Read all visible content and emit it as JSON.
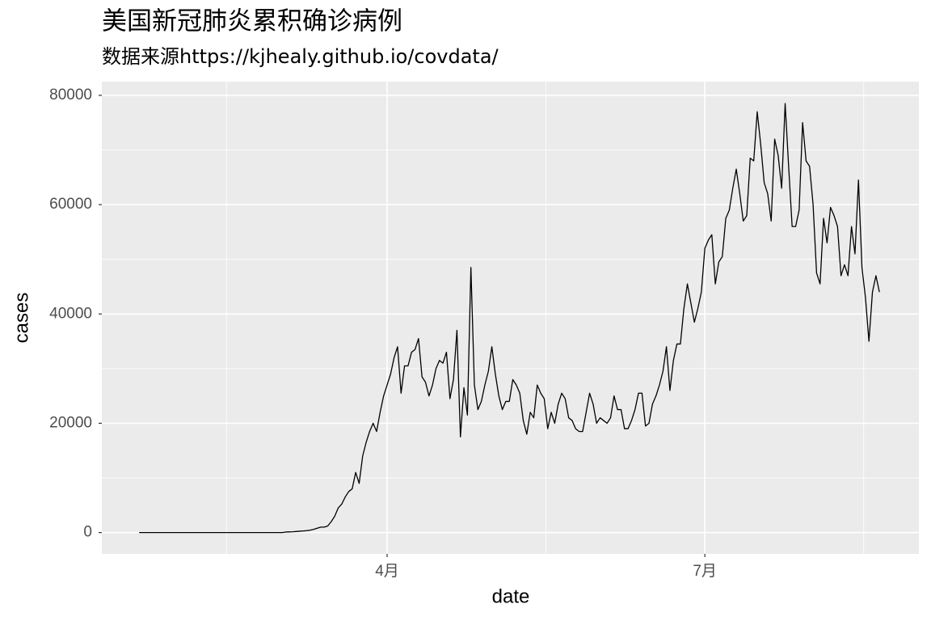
{
  "chart_data": {
    "type": "line",
    "title": "美国新冠肺炎累积确诊病例",
    "subtitle": "数据来源https://kjhealy.github.io/covdata/",
    "x_label": "date",
    "y_label": "cases",
    "color": "#000000",
    "x": [
      21,
      22,
      23,
      24,
      25,
      26,
      27,
      28,
      29,
      30,
      31,
      32,
      33,
      34,
      35,
      36,
      37,
      38,
      39,
      40,
      41,
      42,
      43,
      44,
      45,
      46,
      47,
      48,
      49,
      50,
      51,
      52,
      53,
      54,
      55,
      56,
      57,
      58,
      59,
      60,
      61,
      62,
      63,
      64,
      65,
      66,
      67,
      68,
      69,
      70,
      71,
      72,
      73,
      74,
      75,
      76,
      77,
      78,
      79,
      80,
      81,
      82,
      83,
      84,
      85,
      86,
      87,
      88,
      89,
      90,
      91,
      92,
      93,
      94,
      95,
      96,
      97,
      98,
      99,
      100,
      101,
      102,
      103,
      104,
      105,
      106,
      107,
      108,
      109,
      110,
      111,
      112,
      113,
      114,
      115,
      116,
      117,
      118,
      119,
      120,
      121,
      122,
      123,
      124,
      125,
      126,
      127,
      128,
      129,
      130,
      131,
      132,
      133,
      134,
      135,
      136,
      137,
      138,
      139,
      140,
      141,
      142,
      143,
      144,
      145,
      146,
      147,
      148,
      149,
      150,
      151,
      152,
      153,
      154,
      155,
      156,
      157,
      158,
      159,
      160,
      161,
      162,
      163,
      164,
      165,
      166,
      167,
      168,
      169,
      170,
      171,
      172,
      173,
      174,
      175,
      176,
      177,
      178,
      179,
      180,
      181,
      182,
      183,
      184,
      185,
      186,
      187,
      188,
      189,
      190,
      191,
      192,
      193,
      194,
      195,
      196,
      197,
      198,
      199,
      200,
      201,
      202,
      203,
      204,
      205,
      206,
      207,
      208,
      209,
      210,
      211,
      212,
      213,
      214,
      215,
      216,
      217,
      218,
      219,
      220,
      221,
      222,
      223,
      224,
      225,
      226,
      227,
      228,
      229,
      230,
      231,
      232,
      233
    ],
    "values": [
      0,
      0,
      0,
      0,
      0,
      0,
      0,
      0,
      0,
      0,
      0,
      0,
      0,
      0,
      0,
      0,
      0,
      0,
      0,
      0,
      0,
      0,
      0,
      0,
      0,
      0,
      0,
      0,
      0,
      0,
      0,
      0,
      0,
      0,
      0,
      0,
      0,
      0,
      0,
      0,
      0,
      0,
      100,
      120,
      150,
      200,
      250,
      300,
      350,
      450,
      600,
      800,
      1000,
      1000,
      1200,
      2000,
      3000,
      4500,
      5200,
      6500,
      7500,
      8000,
      11000,
      9000,
      14000,
      16500,
      18500,
      20000,
      18500,
      22000,
      25000,
      27000,
      29000,
      32000,
      34000,
      25500,
      30500,
      30500,
      33000,
      33500,
      35500,
      28500,
      27500,
      25000,
      27000,
      30000,
      31500,
      31000,
      33000,
      24500,
      28000,
      37000,
      17500,
      26500,
      21500,
      48500,
      27000,
      22500,
      24000,
      27000,
      29500,
      34000,
      29000,
      25000,
      22500,
      24000,
      24000,
      28000,
      27000,
      25500,
      20500,
      18000,
      22000,
      21000,
      27000,
      25500,
      24500,
      19000,
      22000,
      20000,
      23500,
      25500,
      24500,
      21000,
      20500,
      19000,
      18500,
      18500,
      22000,
      25500,
      23500,
      20000,
      21000,
      20500,
      20000,
      21000,
      25000,
      22500,
      22500,
      19000,
      19000,
      20500,
      22500,
      25500,
      25500,
      19500,
      20000,
      23500,
      25000,
      27000,
      29500,
      34000,
      26000,
      31500,
      34500,
      34500,
      41000,
      45500,
      42000,
      38500,
      41000,
      44000,
      52000,
      53500,
      54500,
      45500,
      49500,
      50500,
      57500,
      59000,
      63000,
      66500,
      62000,
      57000,
      58000,
      68500,
      68000,
      77000,
      71000,
      64000,
      62000,
      57000,
      72000,
      69000,
      63000,
      78500,
      67000,
      56000,
      56000,
      59000,
      75000,
      68000,
      67000,
      60000,
      47500,
      45500,
      57500,
      53000,
      59500,
      58000,
      56000,
      47000,
      49000,
      47000,
      56000,
      51000,
      64500,
      48500,
      43000,
      35000,
      44000,
      47000,
      44000
    ],
    "xlim": [
      10.3,
      244.3
    ],
    "xticks": [
      {
        "value": 92,
        "label": "4月"
      },
      {
        "value": 183,
        "label": "7月"
      }
    ],
    "minor_xticks": [
      46,
      137.5,
      228.5
    ],
    "ylim": [
      -3900,
      82500
    ],
    "yticks": [
      0,
      20000,
      40000,
      60000,
      80000
    ],
    "minor_yticks": [
      10000,
      30000,
      50000,
      70000
    ],
    "grid": true
  }
}
